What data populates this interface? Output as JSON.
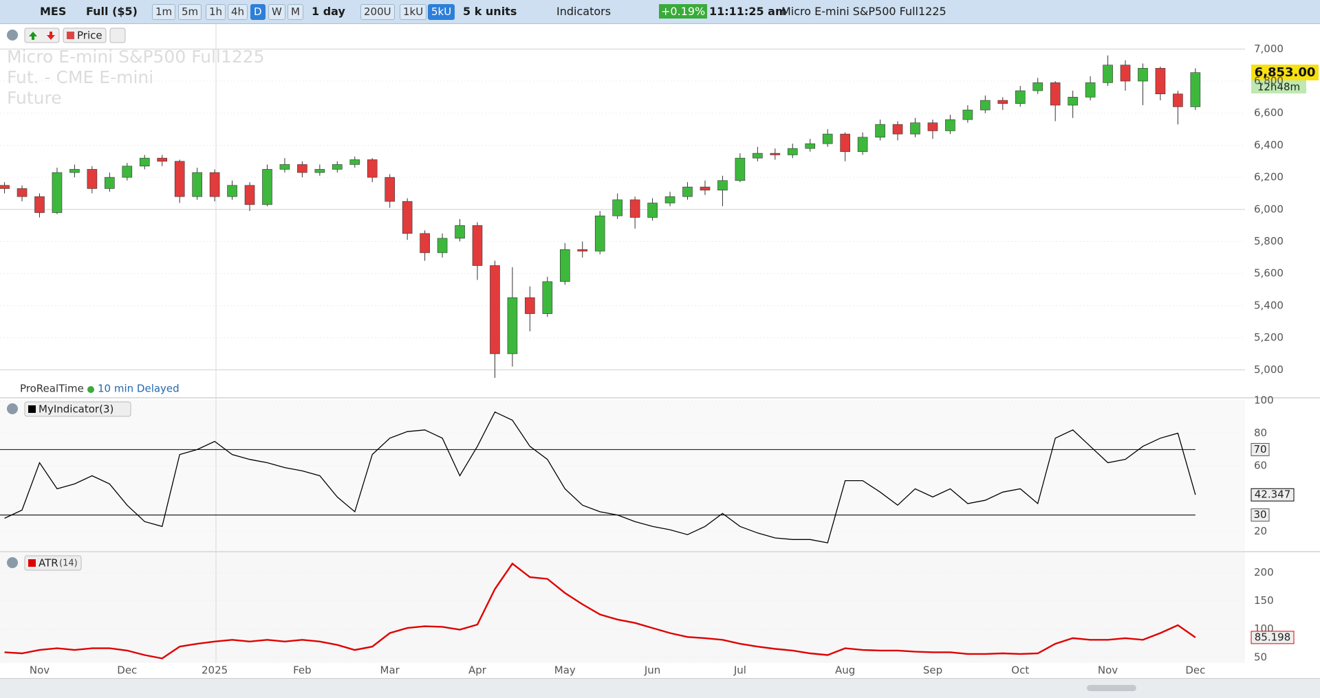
{
  "toolbar": {
    "symbol": "MES",
    "contract": "Full ($5)",
    "timeframes": [
      "1m",
      "5m",
      "1h",
      "4h",
      "D",
      "W",
      "M"
    ],
    "period": "1 day",
    "units": [
      "200U",
      "1kU",
      "5kU"
    ],
    "unit_size": "5 k units",
    "indicators": "Indicators",
    "change": "+0.19%",
    "time": "11:11:25 am",
    "instrument": "Micro E-mini S&P500 Full1225"
  },
  "price_pane": {
    "button": "Price",
    "watermark": [
      "Micro E-mini S&P500 Full1225",
      "Fut. - CME E-mini",
      "Future"
    ],
    "brand": "ProRealTime",
    "feed": "10 min Delayed",
    "last_price": "6,853.00",
    "countdown": "12h48m"
  },
  "chart_data": [
    {
      "type": "candlestick",
      "categories": [
        null,
        null,
        "Nov",
        null,
        null,
        null,
        null,
        "Dec",
        null,
        null,
        null,
        null,
        "2025",
        null,
        null,
        null,
        null,
        "Feb",
        null,
        null,
        null,
        null,
        "Mar",
        null,
        null,
        null,
        null,
        "Apr",
        null,
        null,
        null,
        null,
        "May",
        null,
        null,
        null,
        null,
        "Jun",
        null,
        null,
        null,
        null,
        "Jul",
        null,
        null,
        null,
        null,
        null,
        "Aug",
        null,
        null,
        null,
        null,
        "Sep",
        null,
        null,
        null,
        null,
        "Oct",
        null,
        null,
        null,
        null,
        "Nov",
        null,
        null,
        null,
        null,
        "Dec"
      ],
      "open": [
        6150,
        6130,
        6080,
        5980,
        6230,
        6250,
        6130,
        6200,
        6270,
        6320,
        6300,
        6080,
        6230,
        6080,
        6150,
        6030,
        6250,
        6280,
        6230,
        6250,
        6280,
        6310,
        6200,
        6050,
        5850,
        5730,
        5820,
        5900,
        5650,
        5100,
        5450,
        5350,
        5550,
        5750,
        5740,
        5960,
        6060,
        5950,
        6040,
        6080,
        6140,
        6120,
        6180,
        6320,
        6350,
        6340,
        6380,
        6410,
        6470,
        6360,
        6450,
        6530,
        6470,
        6540,
        6490,
        6560,
        6620,
        6680,
        6660,
        6740,
        6790,
        6650,
        6700,
        6790,
        6900,
        6800,
        6880,
        6720,
        6640
      ],
      "high": [
        6170,
        6150,
        6100,
        6260,
        6280,
        6270,
        6230,
        6290,
        6340,
        6340,
        6310,
        6260,
        6250,
        6180,
        6170,
        6280,
        6320,
        6300,
        6280,
        6300,
        6330,
        6320,
        6220,
        6070,
        5870,
        5850,
        5940,
        5920,
        5680,
        5640,
        5520,
        5580,
        5790,
        5800,
        5990,
        6100,
        6080,
        6070,
        6110,
        6170,
        6180,
        6210,
        6350,
        6390,
        6380,
        6410,
        6440,
        6500,
        6480,
        6480,
        6560,
        6550,
        6570,
        6560,
        6590,
        6650,
        6710,
        6700,
        6770,
        6820,
        6800,
        6740,
        6830,
        6960,
        6930,
        6910,
        6890,
        6740,
        6880
      ],
      "low": [
        6100,
        6050,
        5950,
        5970,
        6200,
        6100,
        6110,
        6180,
        6250,
        6270,
        6040,
        6060,
        6050,
        6060,
        5990,
        6020,
        6230,
        6200,
        6210,
        6230,
        6260,
        6170,
        6010,
        5810,
        5680,
        5700,
        5800,
        5560,
        4950,
        5020,
        5240,
        5330,
        5530,
        5700,
        5720,
        5940,
        5880,
        5930,
        6020,
        6060,
        6090,
        6020,
        6170,
        6300,
        6310,
        6320,
        6360,
        6390,
        6300,
        6340,
        6430,
        6430,
        6450,
        6440,
        6470,
        6540,
        6600,
        6620,
        6640,
        6720,
        6550,
        6570,
        6680,
        6770,
        6740,
        6650,
        6680,
        6530,
        6620
      ],
      "close": [
        6130,
        6080,
        5980,
        6230,
        6250,
        6130,
        6200,
        6270,
        6320,
        6300,
        6080,
        6230,
        6080,
        6150,
        6030,
        6250,
        6280,
        6230,
        6250,
        6280,
        6310,
        6200,
        6050,
        5850,
        5730,
        5820,
        5900,
        5650,
        5100,
        5450,
        5350,
        5550,
        5750,
        5740,
        5960,
        6060,
        5950,
        6040,
        6080,
        6140,
        6120,
        6180,
        6320,
        6350,
        6340,
        6380,
        6410,
        6470,
        6360,
        6450,
        6530,
        6470,
        6540,
        6490,
        6560,
        6620,
        6680,
        6660,
        6740,
        6790,
        6650,
        6700,
        6790,
        6900,
        6800,
        6880,
        6720,
        6640,
        6853
      ],
      "up_color": "#3db83d",
      "down_color": "#e23b3b",
      "ylim": [
        4830,
        7160
      ],
      "yticks": [
        {
          "value": 5000,
          "label": "5,000"
        },
        {
          "value": 5200,
          "label": "5,200"
        },
        {
          "value": 5400,
          "label": "5,400"
        },
        {
          "value": 5600,
          "label": "5,600"
        },
        {
          "value": 5800,
          "label": "5,800"
        },
        {
          "value": 6000,
          "label": "6,000"
        },
        {
          "value": 6200,
          "label": "6,200"
        },
        {
          "value": 6400,
          "label": "6,400"
        },
        {
          "value": 6600,
          "label": "6,600"
        },
        {
          "value": 6800,
          "label": "6,800"
        },
        {
          "value": 7000,
          "label": "7,000"
        }
      ],
      "grid": true
    },
    {
      "type": "line",
      "title": "MyIndicator(3)",
      "color": "#000000",
      "values": [
        28,
        33,
        62,
        46,
        49,
        54,
        49,
        36,
        26,
        23,
        67,
        70,
        75,
        67,
        64,
        62,
        59,
        57,
        54,
        41,
        32,
        67,
        77,
        81,
        82,
        77,
        54,
        72,
        93,
        88,
        72,
        64,
        46,
        36,
        32,
        30,
        26,
        23,
        21,
        18,
        23,
        31,
        23,
        19,
        16,
        15,
        15,
        13,
        51,
        51,
        44,
        36,
        46,
        41,
        46,
        37,
        39,
        44,
        46,
        37,
        77,
        82,
        72,
        62,
        64,
        72,
        77,
        80,
        42.347
      ],
      "levels": [
        70,
        30
      ],
      "ylim": [
        8,
        100
      ],
      "yticks": [
        20,
        60,
        80,
        100
      ]
    },
    {
      "type": "line",
      "title": "ATR",
      "subtitle": "(14)",
      "color": "#e00000",
      "values": [
        59,
        57,
        63,
        66,
        63,
        66,
        66,
        62,
        54,
        48,
        69,
        74,
        78,
        81,
        78,
        81,
        78,
        81,
        78,
        72,
        63,
        69,
        93,
        102,
        105,
        104,
        99,
        108,
        171,
        216,
        192,
        189,
        164,
        144,
        126,
        117,
        111,
        102,
        93,
        86,
        84,
        81,
        74,
        69,
        65,
        62,
        57,
        54,
        66,
        63,
        62,
        62,
        60,
        59,
        59,
        56,
        56,
        57,
        56,
        57,
        74,
        84,
        81,
        81,
        84,
        81,
        93,
        107,
        85.198
      ],
      "ylim": [
        40,
        236
      ],
      "yticks": [
        50,
        100,
        150,
        200
      ]
    }
  ]
}
